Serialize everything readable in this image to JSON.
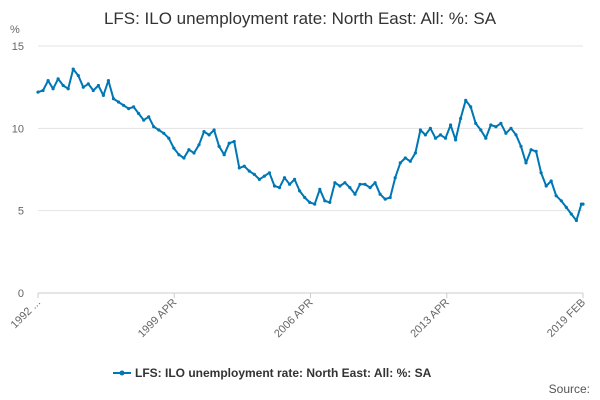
{
  "chart_data": {
    "type": "line",
    "title": "LFS: ILO unemployment rate: North East: All: %: SA",
    "ylabel": "%",
    "xlabel": "",
    "ylim": [
      0,
      15
    ],
    "yticks": [
      0,
      5,
      10,
      15
    ],
    "xlim": [
      1992.0,
      2019.08
    ],
    "xtick_labels": [
      "1992 ...",
      "1999 APR",
      "2006 APR",
      "2013 APR",
      "2019 FEB"
    ],
    "grid": "horizontal",
    "legend_position": "bottom",
    "source_label": "Source:",
    "series": [
      {
        "name": "LFS: ILO unemployment rate: North East: All: %: SA",
        "color": "#0077b5",
        "points": [
          [
            1992.0,
            12.2
          ],
          [
            1992.25,
            12.3
          ],
          [
            1992.5,
            12.9
          ],
          [
            1992.75,
            12.4
          ],
          [
            1993.0,
            13.0
          ],
          [
            1993.25,
            12.6
          ],
          [
            1993.5,
            12.4
          ],
          [
            1993.75,
            13.6
          ],
          [
            1994.0,
            13.2
          ],
          [
            1994.25,
            12.5
          ],
          [
            1994.5,
            12.7
          ],
          [
            1994.75,
            12.3
          ],
          [
            1995.0,
            12.6
          ],
          [
            1995.25,
            12.0
          ],
          [
            1995.5,
            12.9
          ],
          [
            1995.75,
            11.8
          ],
          [
            1996.0,
            11.6
          ],
          [
            1996.25,
            11.4
          ],
          [
            1996.5,
            11.2
          ],
          [
            1996.75,
            11.3
          ],
          [
            1997.0,
            10.9
          ],
          [
            1997.25,
            10.5
          ],
          [
            1997.5,
            10.7
          ],
          [
            1997.75,
            10.1
          ],
          [
            1998.0,
            9.9
          ],
          [
            1998.25,
            9.7
          ],
          [
            1998.5,
            9.4
          ],
          [
            1998.75,
            8.8
          ],
          [
            1999.0,
            8.4
          ],
          [
            1999.25,
            8.2
          ],
          [
            1999.5,
            8.7
          ],
          [
            1999.75,
            8.5
          ],
          [
            2000.0,
            9.0
          ],
          [
            2000.25,
            9.8
          ],
          [
            2000.5,
            9.6
          ],
          [
            2000.75,
            9.9
          ],
          [
            2001.0,
            8.9
          ],
          [
            2001.25,
            8.4
          ],
          [
            2001.5,
            9.1
          ],
          [
            2001.75,
            9.2
          ],
          [
            2002.0,
            7.6
          ],
          [
            2002.25,
            7.7
          ],
          [
            2002.5,
            7.4
          ],
          [
            2002.75,
            7.2
          ],
          [
            2003.0,
            6.9
          ],
          [
            2003.25,
            7.1
          ],
          [
            2003.5,
            7.3
          ],
          [
            2003.75,
            6.5
          ],
          [
            2004.0,
            6.4
          ],
          [
            2004.25,
            7.0
          ],
          [
            2004.5,
            6.6
          ],
          [
            2004.75,
            6.9
          ],
          [
            2005.0,
            6.2
          ],
          [
            2005.25,
            5.8
          ],
          [
            2005.5,
            5.5
          ],
          [
            2005.75,
            5.4
          ],
          [
            2006.0,
            6.3
          ],
          [
            2006.25,
            5.6
          ],
          [
            2006.5,
            5.5
          ],
          [
            2006.75,
            6.7
          ],
          [
            2007.0,
            6.5
          ],
          [
            2007.25,
            6.7
          ],
          [
            2007.5,
            6.4
          ],
          [
            2007.75,
            6.0
          ],
          [
            2008.0,
            6.6
          ],
          [
            2008.25,
            6.6
          ],
          [
            2008.5,
            6.4
          ],
          [
            2008.75,
            6.7
          ],
          [
            2009.0,
            6.0
          ],
          [
            2009.25,
            5.7
          ],
          [
            2009.5,
            5.8
          ],
          [
            2009.75,
            7.0
          ],
          [
            2010.0,
            7.9
          ],
          [
            2010.25,
            8.2
          ],
          [
            2010.5,
            8.0
          ],
          [
            2010.75,
            8.5
          ],
          [
            2011.0,
            9.9
          ],
          [
            2011.25,
            9.6
          ],
          [
            2011.5,
            10.0
          ],
          [
            2011.75,
            9.4
          ],
          [
            2012.0,
            9.6
          ],
          [
            2012.25,
            9.4
          ],
          [
            2012.5,
            10.2
          ],
          [
            2012.75,
            9.3
          ],
          [
            2013.0,
            10.6
          ],
          [
            2013.25,
            11.7
          ],
          [
            2013.5,
            11.3
          ],
          [
            2013.75,
            10.3
          ],
          [
            2014.0,
            9.9
          ],
          [
            2014.25,
            9.4
          ],
          [
            2014.5,
            10.2
          ],
          [
            2014.75,
            10.1
          ],
          [
            2015.0,
            10.3
          ],
          [
            2015.25,
            9.7
          ],
          [
            2015.5,
            10.0
          ],
          [
            2015.75,
            9.6
          ],
          [
            2016.0,
            8.9
          ],
          [
            2016.25,
            7.9
          ],
          [
            2016.5,
            8.7
          ],
          [
            2016.75,
            8.6
          ],
          [
            2017.0,
            7.3
          ],
          [
            2017.25,
            6.5
          ],
          [
            2017.5,
            6.8
          ],
          [
            2017.75,
            5.9
          ],
          [
            2018.0,
            5.6
          ],
          [
            2018.25,
            5.2
          ],
          [
            2018.5,
            4.8
          ],
          [
            2018.75,
            4.4
          ],
          [
            2019.0,
            5.4
          ],
          [
            2019.08,
            5.4
          ]
        ]
      }
    ]
  }
}
